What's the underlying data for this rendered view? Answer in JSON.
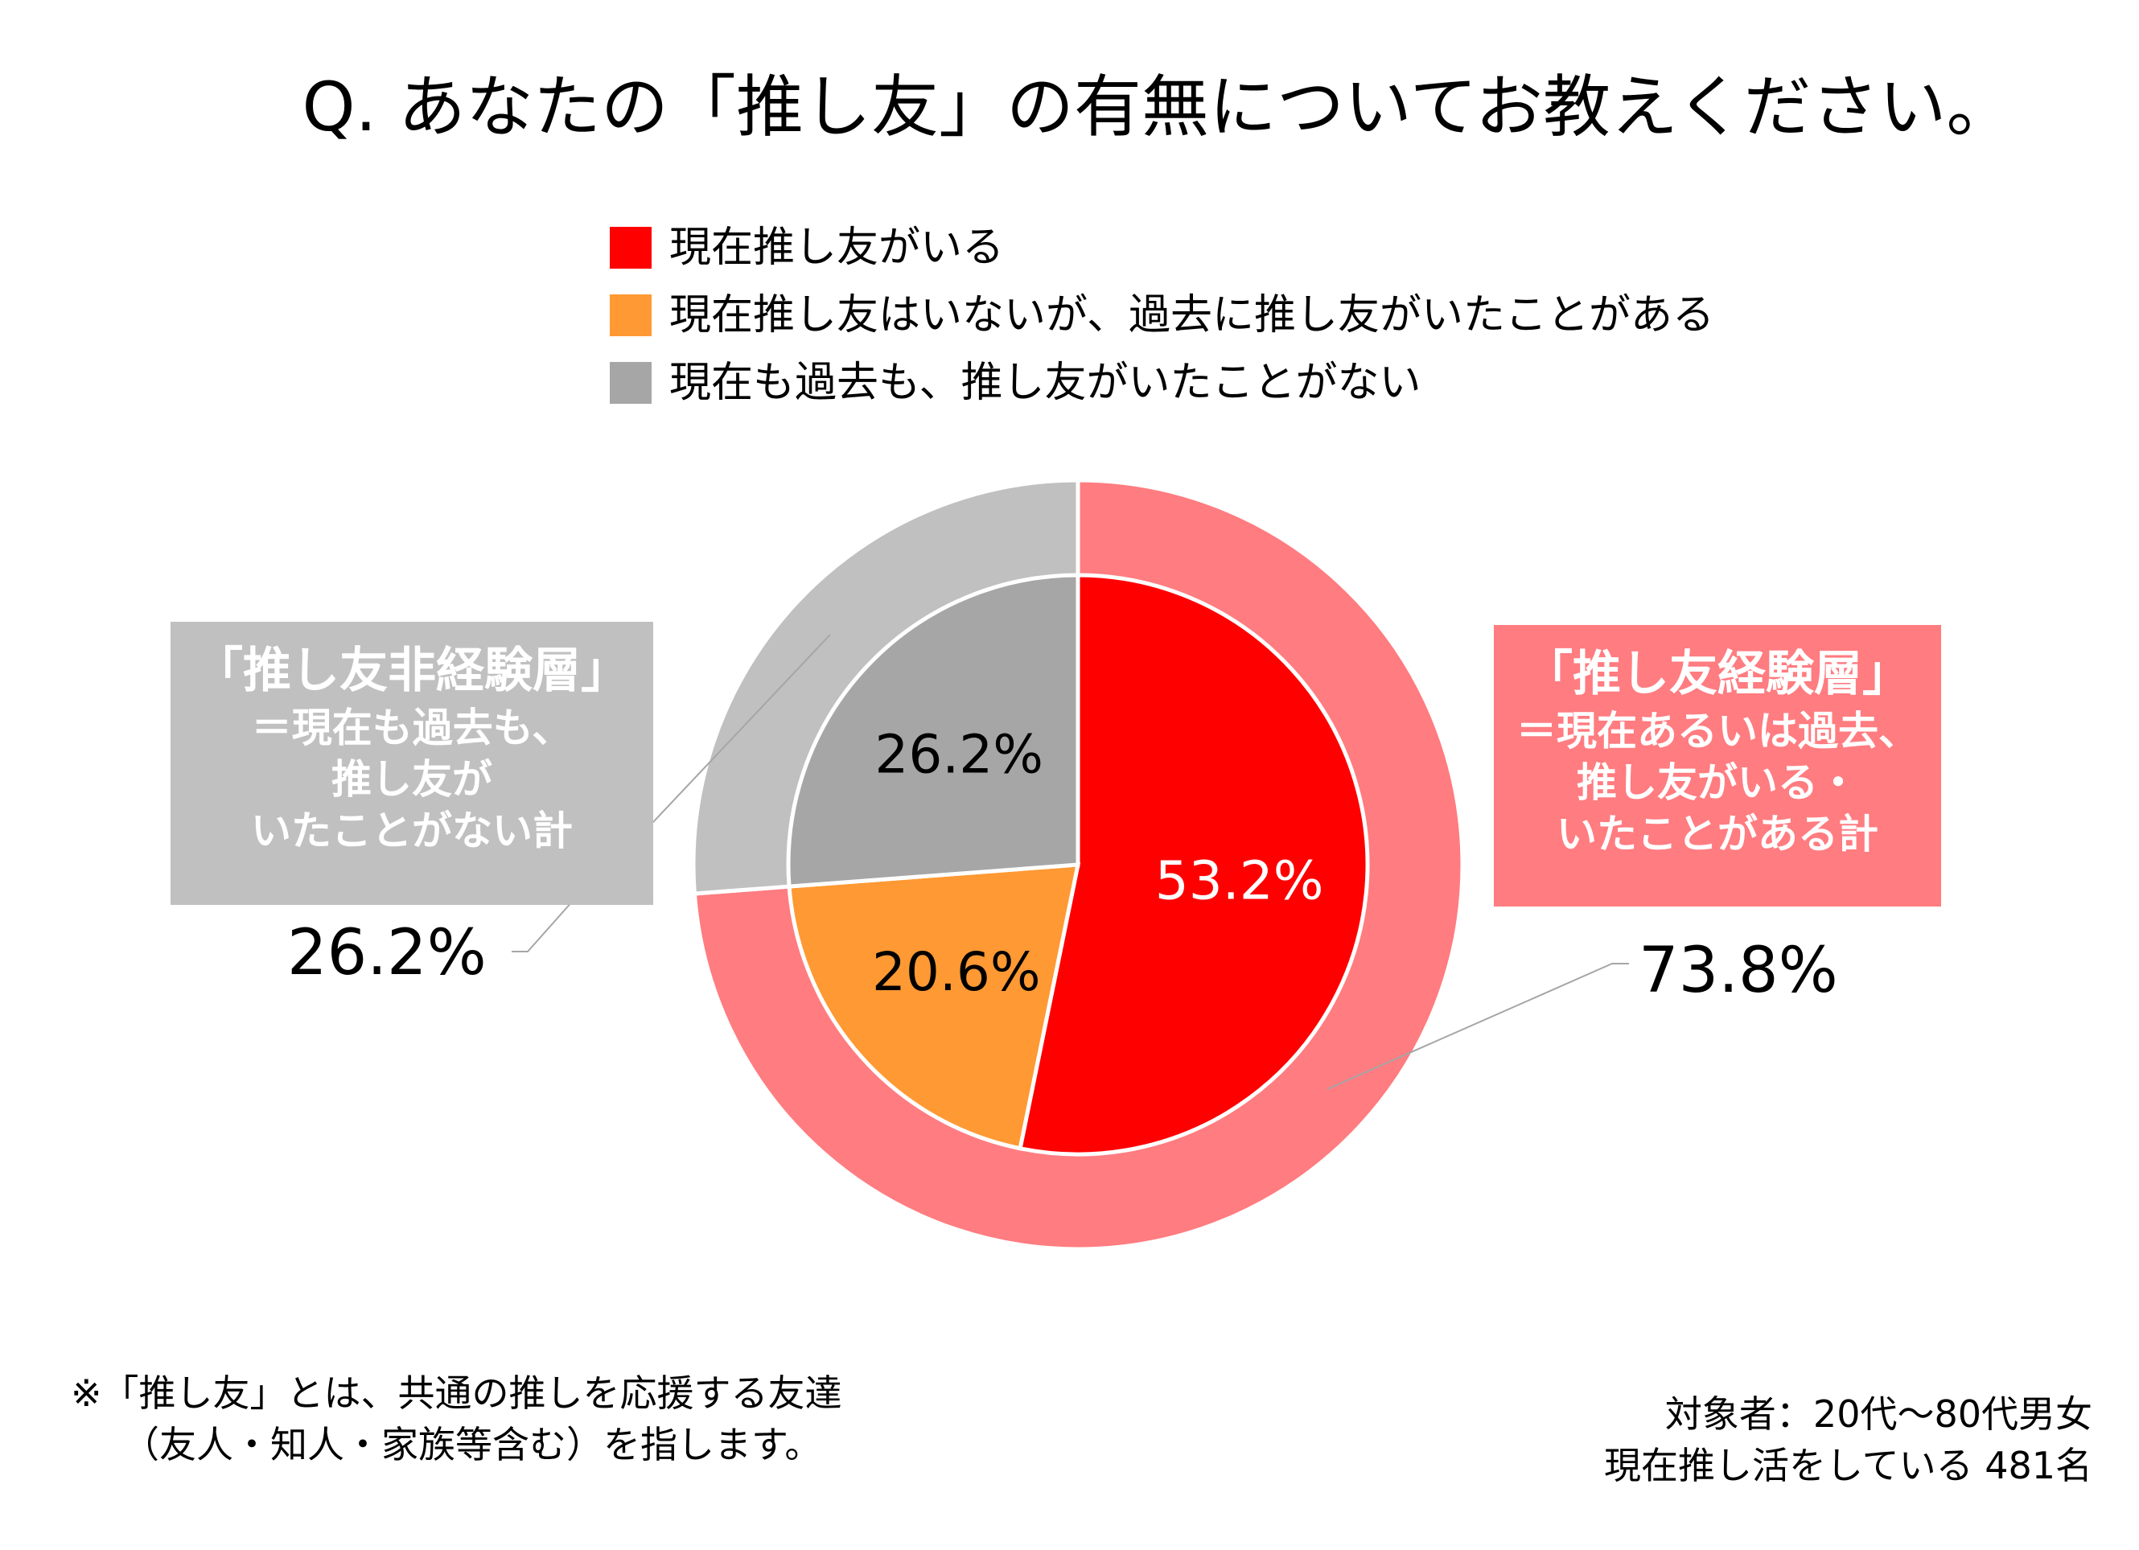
{
  "title": "Q. あなたの「推し友」の有無についてお教えください。",
  "legend": [
    {
      "label": "現在推し友がいる",
      "color": "#ff0000"
    },
    {
      "label": "現在推し友はいないが、過去に推し友がいたことがある",
      "color": "#ff9933"
    },
    {
      "label": "現在も過去も、推し友がいたことがない",
      "color": "#a6a6a6"
    }
  ],
  "callouts": {
    "non_experienced": {
      "heading": "「推し友非経験層」",
      "lines": [
        "＝現在も過去も、",
        "推し友が",
        "いたことがない計"
      ],
      "value": "26.2%"
    },
    "experienced": {
      "heading": "「推し友経験層」",
      "lines": [
        "＝現在あるいは過去、",
        "推し友がいる・",
        "いたことがある計"
      ],
      "value": "73.8%"
    }
  },
  "footnote": {
    "line1": "※「推し友」とは、共通の推しを応援する友達",
    "line2": "（友人・知人・家族等含む）を指します。"
  },
  "source": {
    "line1": "対象者：20代～80代男女",
    "line2": "現在推し活をしている 481名"
  },
  "chart_data": {
    "type": "pie",
    "title": "Q. あなたの「推し友」の有無についてお教えください。",
    "inner_ring": {
      "categories": [
        "現在推し友がいる",
        "現在推し友はいないが、過去に推し友がいたことがある",
        "現在も過去も、推し友がいたことがない"
      ],
      "values": [
        53.2,
        20.6,
        26.2
      ],
      "labels": [
        "53.2%",
        "20.6%",
        "26.2%"
      ],
      "label_colors": [
        "#ffffff",
        "#000000",
        "#000000"
      ],
      "colors": [
        "#ff0000",
        "#ff9933",
        "#a6a6a6"
      ]
    },
    "outer_ring": {
      "categories": [
        "「推し友経験層」",
        "「推し友非経験層」"
      ],
      "values": [
        73.8,
        26.2
      ],
      "labels": [
        "73.8%",
        "26.2%"
      ],
      "colors": [
        "#ff7c80",
        "#c0c0c0"
      ]
    },
    "start": "12 o'clock",
    "direction": "clockwise",
    "legend_position": "top"
  }
}
